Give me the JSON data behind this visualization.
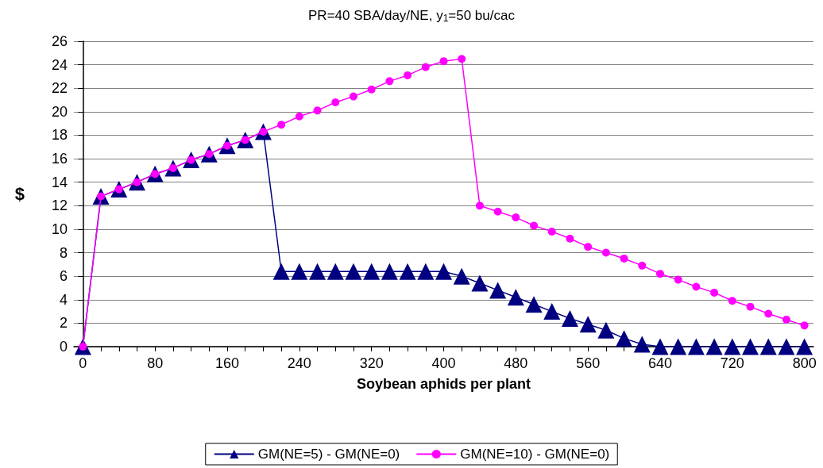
{
  "chart_data": {
    "type": "line",
    "title": "PR=40 SBA/day/NE, y$_{1}$=50 bu/cac",
    "xlabel": "Soybean aphids per plant",
    "ylabel": "$",
    "x": [
      0,
      20,
      40,
      60,
      80,
      100,
      120,
      140,
      160,
      180,
      200,
      220,
      240,
      260,
      280,
      300,
      320,
      340,
      360,
      380,
      400,
      420,
      440,
      460,
      480,
      500,
      520,
      540,
      560,
      580,
      600,
      620,
      640,
      660,
      680,
      700,
      720,
      740,
      760,
      780,
      800
    ],
    "series": [
      {
        "name": "GM(NE=5) - GM(NE=0)",
        "color": "#000080",
        "marker": "triangle",
        "values": [
          0,
          12.8,
          13.4,
          14.0,
          14.7,
          15.2,
          15.9,
          16.4,
          17.1,
          17.6,
          18.3,
          6.4,
          6.4,
          6.4,
          6.4,
          6.4,
          6.4,
          6.4,
          6.4,
          6.4,
          6.4,
          6.0,
          5.4,
          4.8,
          4.2,
          3.6,
          3.0,
          2.4,
          1.9,
          1.4,
          0.7,
          0.2,
          0,
          0,
          0,
          0,
          0,
          0,
          0,
          0,
          0
        ]
      },
      {
        "name": "GM(NE=10) - GM(NE=0)",
        "color": "#ff00ff",
        "marker": "circle",
        "values": [
          0,
          12.8,
          13.4,
          14.0,
          14.7,
          15.2,
          15.9,
          16.4,
          17.1,
          17.6,
          18.3,
          18.9,
          19.6,
          20.1,
          20.8,
          21.3,
          21.9,
          22.6,
          23.1,
          23.8,
          24.3,
          24.5,
          12.0,
          11.5,
          11.0,
          10.3,
          9.8,
          9.2,
          8.5,
          8.0,
          7.5,
          6.9,
          6.2,
          5.7,
          5.1,
          4.6,
          3.9,
          3.4,
          2.8,
          2.3,
          1.8
        ]
      }
    ],
    "xlim": [
      -10,
      810
    ],
    "xticks": [
      0,
      80,
      160,
      240,
      320,
      400,
      480,
      560,
      640,
      720,
      800
    ],
    "ylim": [
      0,
      26
    ],
    "yticks": [
      0,
      2,
      4,
      6,
      8,
      10,
      12,
      14,
      16,
      18,
      20,
      22,
      24,
      26
    ],
    "grid": "y",
    "legend": "bottom",
    "line_style": "solid"
  }
}
